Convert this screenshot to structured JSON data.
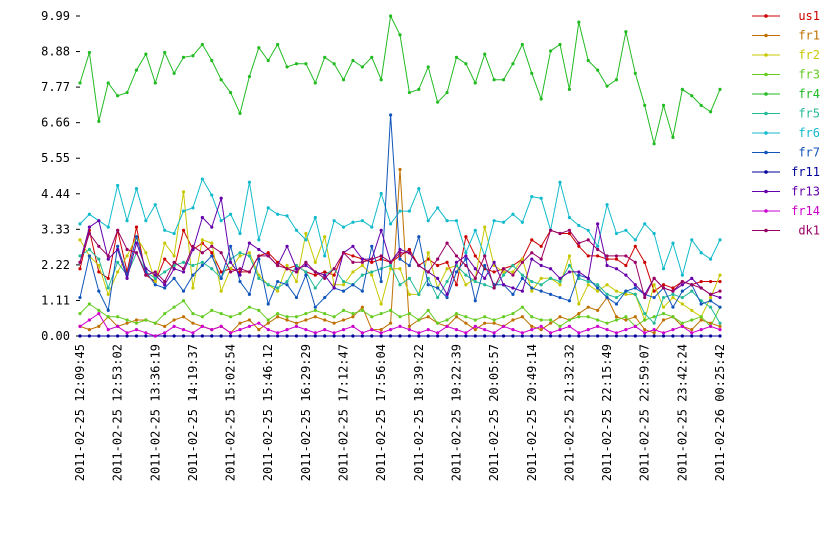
{
  "chart_data": {
    "type": "line",
    "categories": [
      "2011-02-25 12:09:45",
      null,
      null,
      null,
      "2011-02-25 12:53:02",
      null,
      null,
      null,
      "2011-02-25 13:36:19",
      null,
      null,
      null,
      "2011-02-25 14:19:37",
      null,
      null,
      null,
      "2011-02-25 15:02:54",
      null,
      null,
      null,
      "2011-02-25 15:46:12",
      null,
      null,
      null,
      "2011-02-25 16:29:29",
      null,
      null,
      null,
      "2011-02-25 17:12:47",
      null,
      null,
      null,
      "2011-02-25 17:56:04",
      null,
      null,
      null,
      "2011-02-25 18:39:22",
      null,
      null,
      null,
      "2011-02-25 19:22:39",
      null,
      null,
      null,
      "2011-02-25 20:05:57",
      null,
      null,
      null,
      "2011-02-25 20:49:14",
      null,
      null,
      null,
      "2011-02-25 21:32:32",
      null,
      null,
      null,
      "2011-02-25 22:15:49",
      null,
      null,
      null,
      "2011-02-25 22:59:07",
      null,
      null,
      null,
      "2011-02-25 23:42:24",
      null,
      null,
      null,
      "2011-02-26 00:25:42"
    ],
    "ylim": [
      0,
      9.99
    ],
    "yticks": [
      {
        "value": 0,
        "label": "0.00"
      },
      1.11,
      2.22,
      3.33,
      4.44,
      5.55,
      6.66,
      7.77,
      8.88,
      9.99
    ],
    "series": [
      {
        "name": "us1",
        "color": "#cc0000",
        "values": [
          2.1,
          3.3,
          2.0,
          1.8,
          3.3,
          2.0,
          3.4,
          1.9,
          1.7,
          2.4,
          2.1,
          3.3,
          2.7,
          2.9,
          2.6,
          2.0,
          2.1,
          2.0,
          2.0,
          2.5,
          2.6,
          2.3,
          2.1,
          2.2,
          2.0,
          1.9,
          2.0,
          1.9,
          2.6,
          2.5,
          2.4,
          2.3,
          2.4,
          2.3,
          2.5,
          2.7,
          2.2,
          2.4,
          2.2,
          2.3,
          1.6,
          3.1,
          2.5,
          2.1,
          2.0,
          2.1,
          2.2,
          2.4,
          3.0,
          2.8,
          3.3,
          3.2,
          3.2,
          2.8,
          2.5,
          2.5,
          2.4,
          2.4,
          2.2,
          2.8,
          2.3,
          1.4,
          1.6,
          1.5,
          1.7,
          1.6,
          1.7,
          1.7,
          1.7
        ]
      },
      {
        "name": "fr1",
        "color": "#c07000",
        "values": [
          0.3,
          0.2,
          0.3,
          0.6,
          0.3,
          0.4,
          0.5,
          0.5,
          0.4,
          0.3,
          0.5,
          0.6,
          0.4,
          0.3,
          0.2,
          0.3,
          0.1,
          0.4,
          0.5,
          0.2,
          0.4,
          0.6,
          0.5,
          0.4,
          0.5,
          0.6,
          0.5,
          0.4,
          0.5,
          0.6,
          0.9,
          0.2,
          0.2,
          0.4,
          5.2,
          0.3,
          0.5,
          0.6,
          0.4,
          0.3,
          0.6,
          0.4,
          0.2,
          0.4,
          0.4,
          0.3,
          0.5,
          0.6,
          0.3,
          0.2,
          0.4,
          0.6,
          0.5,
          0.7,
          0.9,
          0.8,
          1.2,
          0.6,
          0.5,
          0.6,
          0.2,
          0.1,
          0.5,
          0.6,
          0.3,
          0.2,
          0.5,
          0.4,
          0.3
        ]
      },
      {
        "name": "fr2",
        "color": "#c8c800",
        "values": [
          3.0,
          2.5,
          2.2,
          1.3,
          2.0,
          2.5,
          3.1,
          2.6,
          1.7,
          2.9,
          2.5,
          4.5,
          1.5,
          3.0,
          2.9,
          1.4,
          2.1,
          2.5,
          2.6,
          1.9,
          1.6,
          1.4,
          2.2,
          1.7,
          3.2,
          2.3,
          3.1,
          1.6,
          1.6,
          2.0,
          2.2,
          1.9,
          1.0,
          2.1,
          2.1,
          1.3,
          1.3,
          2.6,
          1.5,
          2.1,
          2.2,
          1.6,
          1.8,
          3.4,
          2.2,
          2.0,
          2.0,
          2.4,
          1.4,
          1.8,
          1.8,
          1.6,
          2.5,
          1.0,
          1.6,
          1.4,
          1.6,
          1.4,
          1.3,
          1.3,
          0.5,
          1.6,
          0.9,
          1.2,
          1.0,
          0.8,
          0.6,
          1.2,
          1.9
        ]
      },
      {
        "name": "fr3",
        "color": "#66cc22",
        "values": [
          0.7,
          1.0,
          0.8,
          0.6,
          0.6,
          0.5,
          0.4,
          0.5,
          0.4,
          0.7,
          0.9,
          1.1,
          0.7,
          0.6,
          0.8,
          0.7,
          0.6,
          0.7,
          0.9,
          0.8,
          0.5,
          0.7,
          0.6,
          0.6,
          0.7,
          0.8,
          0.7,
          0.6,
          0.8,
          0.7,
          0.8,
          0.6,
          0.7,
          0.8,
          0.6,
          0.7,
          0.5,
          0.8,
          0.4,
          0.5,
          0.7,
          0.6,
          0.5,
          0.6,
          0.5,
          0.6,
          0.7,
          0.9,
          0.6,
          0.5,
          0.5,
          0.3,
          0.5,
          0.6,
          0.6,
          0.5,
          0.4,
          0.5,
          0.6,
          0.3,
          0.5,
          0.6,
          0.7,
          0.6,
          0.4,
          0.5,
          0.6,
          0.3,
          0.9
        ]
      },
      {
        "name": "fr4",
        "color": "#22bb22",
        "values": [
          7.9,
          8.85,
          6.7,
          7.9,
          7.5,
          7.6,
          8.3,
          8.8,
          7.9,
          8.85,
          8.2,
          8.7,
          8.75,
          9.1,
          8.6,
          8.0,
          7.6,
          6.95,
          8.1,
          9.0,
          8.6,
          9.1,
          8.4,
          8.5,
          8.5,
          7.9,
          8.7,
          8.5,
          8.0,
          8.6,
          8.4,
          8.7,
          8.0,
          9.99,
          9.4,
          7.6,
          7.7,
          8.4,
          7.3,
          7.6,
          8.7,
          8.5,
          7.9,
          8.8,
          8.0,
          8.0,
          8.5,
          9.1,
          8.2,
          7.4,
          8.9,
          9.1,
          7.7,
          9.8,
          8.6,
          8.3,
          7.8,
          8.0,
          9.5,
          8.2,
          7.2,
          6.0,
          7.2,
          6.2,
          7.7,
          7.5,
          7.2,
          7.0,
          7.7
        ]
      },
      {
        "name": "fr5",
        "color": "#22bb99",
        "values": [
          2.5,
          2.7,
          2.4,
          1.5,
          2.3,
          1.9,
          2.6,
          2.0,
          1.8,
          2.0,
          2.2,
          2.3,
          2.2,
          2.3,
          2.1,
          1.8,
          2.4,
          2.6,
          2.5,
          1.8,
          1.6,
          1.5,
          1.7,
          2.2,
          2.0,
          1.5,
          1.9,
          2.1,
          1.7,
          1.6,
          1.9,
          2.0,
          2.1,
          2.2,
          1.6,
          1.8,
          1.3,
          1.8,
          1.2,
          1.7,
          2.2,
          1.9,
          1.7,
          1.6,
          1.5,
          1.9,
          2.2,
          1.9,
          1.7,
          1.6,
          1.8,
          1.7,
          2.2,
          1.8,
          1.7,
          1.6,
          1.3,
          1.2,
          1.4,
          1.3,
          0.7,
          0.4,
          1.2,
          1.3,
          1.2,
          1.4,
          1.1,
          0.9,
          0.4
        ]
      },
      {
        "name": "fr6",
        "color": "#11bbcc",
        "values": [
          3.5,
          3.8,
          3.6,
          3.4,
          4.7,
          3.6,
          4.6,
          3.6,
          4.1,
          3.3,
          3.2,
          3.9,
          4.0,
          4.9,
          4.4,
          3.6,
          3.8,
          3.2,
          4.8,
          3.0,
          4.0,
          3.8,
          3.75,
          3.3,
          3.0,
          3.7,
          2.5,
          3.6,
          3.4,
          3.55,
          3.6,
          3.4,
          4.45,
          3.5,
          3.9,
          3.9,
          4.6,
          3.6,
          4.0,
          3.6,
          3.6,
          2.6,
          3.3,
          2.5,
          3.6,
          3.55,
          3.8,
          3.55,
          4.35,
          4.3,
          3.3,
          4.8,
          3.7,
          3.45,
          3.3,
          2.8,
          4.1,
          3.2,
          3.3,
          3.0,
          3.5,
          3.2,
          2.1,
          2.9,
          1.9,
          3.0,
          2.6,
          2.4,
          3.0
        ]
      },
      {
        "name": "fr7",
        "color": "#1155bb",
        "values": [
          1.2,
          2.5,
          1.4,
          0.8,
          2.8,
          1.9,
          3.1,
          2.0,
          1.6,
          1.5,
          1.8,
          1.4,
          1.9,
          2.2,
          2.5,
          1.8,
          2.8,
          1.7,
          1.3,
          2.4,
          1.0,
          1.7,
          1.6,
          1.2,
          1.9,
          0.9,
          1.2,
          1.5,
          1.4,
          1.6,
          1.4,
          2.8,
          1.7,
          6.9,
          2.4,
          2.2,
          3.1,
          1.6,
          1.5,
          1.2,
          2.0,
          2.4,
          1.1,
          2.2,
          1.6,
          1.6,
          1.3,
          1.8,
          1.5,
          1.4,
          1.3,
          1.2,
          1.1,
          1.9,
          1.8,
          1.5,
          1.2,
          1.0,
          1.4,
          1.5,
          1.3,
          1.2,
          1.5,
          0.9,
          1.4,
          1.6,
          1.0,
          1.1,
          0.9
        ]
      },
      {
        "name": "fr11",
        "color": "#000099",
        "values": [
          0,
          0,
          0,
          0,
          0,
          0,
          0,
          0,
          0,
          0,
          0,
          0,
          0,
          0,
          0,
          0,
          0,
          0,
          0,
          0,
          0,
          0,
          0,
          0,
          0,
          0,
          0,
          0,
          0,
          0,
          0,
          0,
          0,
          0,
          0,
          0,
          0,
          0,
          0,
          0,
          0,
          0,
          0,
          0,
          0,
          0,
          0,
          0,
          0,
          0,
          0,
          0,
          0,
          0,
          0,
          0,
          0,
          0,
          0,
          0,
          0,
          0,
          0,
          0,
          0,
          0,
          0,
          0,
          0
        ]
      },
      {
        "name": "fr13",
        "color": "#6600aa",
        "values": [
          2.3,
          3.4,
          3.6,
          2.4,
          2.7,
          1.8,
          2.9,
          2.1,
          1.9,
          1.6,
          2.1,
          2.0,
          2.7,
          3.7,
          3.4,
          4.3,
          2.3,
          1.9,
          2.9,
          2.7,
          2.5,
          2.2,
          2.8,
          2.1,
          2.2,
          2.0,
          1.9,
          1.5,
          2.6,
          2.8,
          2.4,
          2.4,
          3.3,
          2.3,
          2.7,
          2.6,
          2.2,
          2.0,
          1.8,
          1.3,
          2.3,
          2.5,
          2.1,
          1.8,
          2.3,
          1.6,
          1.5,
          1.4,
          2.4,
          2.2,
          2.1,
          1.8,
          2.0,
          2.0,
          1.8,
          3.5,
          2.2,
          2.1,
          1.9,
          1.6,
          1.3,
          1.8,
          1.5,
          1.4,
          1.6,
          1.8,
          1.5,
          1.3,
          1.2
        ]
      },
      {
        "name": "fr14",
        "color": "#cc00cc",
        "values": [
          0.3,
          0.5,
          0.7,
          0.2,
          0.3,
          0.1,
          0.2,
          0.1,
          0.0,
          0.1,
          0.3,
          0.2,
          0.1,
          0.3,
          0.2,
          0.3,
          0.1,
          0.2,
          0.3,
          0.4,
          0.2,
          0.1,
          0.2,
          0.3,
          0.2,
          0.1,
          0.2,
          0.1,
          0.2,
          0.3,
          0.1,
          0.2,
          0.1,
          0.2,
          0.3,
          0.2,
          0.1,
          0.2,
          0.1,
          0.3,
          0.2,
          0.1,
          0.3,
          0.2,
          0.1,
          0.3,
          0.2,
          0.1,
          0.2,
          0.3,
          0.1,
          0.2,
          0.3,
          0.1,
          0.2,
          0.3,
          0.2,
          0.1,
          0.2,
          0.3,
          0.1,
          0.2,
          0.1,
          0.2,
          0.3,
          0.1,
          0.2,
          0.3,
          0.2
        ]
      },
      {
        "name": "dk1",
        "color": "#990066",
        "values": [
          2.3,
          3.2,
          2.8,
          2.5,
          3.3,
          2.7,
          2.6,
          1.9,
          2.0,
          1.7,
          2.3,
          2.1,
          2.8,
          2.6,
          2.8,
          2.6,
          2.0,
          2.1,
          2.0,
          2.5,
          2.5,
          2.2,
          2.1,
          2.0,
          2.3,
          2.0,
          1.8,
          2.1,
          2.6,
          2.3,
          2.3,
          2.4,
          2.5,
          2.3,
          2.6,
          2.6,
          2.2,
          2.0,
          2.4,
          2.9,
          2.5,
          2.2,
          1.8,
          2.5,
          1.5,
          2.1,
          1.9,
          2.3,
          2.6,
          2.4,
          3.3,
          3.2,
          3.3,
          2.9,
          3.0,
          2.7,
          2.5,
          2.5,
          2.5,
          2.3,
          1.2,
          1.8,
          1.5,
          1.4,
          1.7,
          1.6,
          1.5,
          1.3,
          1.4
        ]
      }
    ]
  }
}
